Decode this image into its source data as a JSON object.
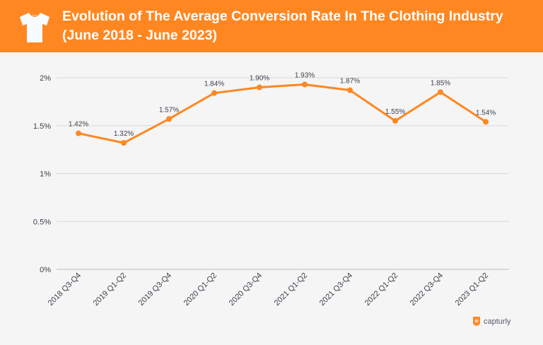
{
  "header": {
    "title_line1": "Evolution of The Average Conversion Rate In The Clothing Industry",
    "title_line2": "(June 2018 - June 2023)",
    "icon": "t-shirt-icon"
  },
  "brand": {
    "name": "capturly"
  },
  "colors": {
    "accent": "#ff8722",
    "line": "#ff8722",
    "grid": "#d9d9d9",
    "text": "#3b3f4a"
  },
  "chart_data": {
    "type": "line",
    "title": "Evolution of The Average Conversion Rate In The Clothing Industry (June 2018 - June 2023)",
    "categories": [
      "2018 Q3-Q4",
      "2019 Q1-Q2",
      "2019 Q3-Q4",
      "2020 Q1-Q2",
      "2020 Q3-Q4",
      "2021 Q1-Q2",
      "2021 Q3-Q4",
      "2022 Q1-Q2",
      "2022 Q3-Q4",
      "2023 Q1-Q2"
    ],
    "values": [
      1.42,
      1.32,
      1.57,
      1.84,
      1.9,
      1.93,
      1.87,
      1.55,
      1.85,
      1.54
    ],
    "data_labels": [
      "1.42%",
      "1.32%",
      "1.57%",
      "1.84%",
      "1.90%",
      "1.93%",
      "1.87%",
      "1.55%",
      "1.85%",
      "1.54%"
    ],
    "yticks": [
      0,
      0.5,
      1,
      1.5,
      2
    ],
    "ytick_labels": [
      "0%",
      "0.5%",
      "1%",
      "1.5%",
      "2%"
    ],
    "ylim": [
      0,
      2
    ],
    "grid": true,
    "legend": "none"
  }
}
